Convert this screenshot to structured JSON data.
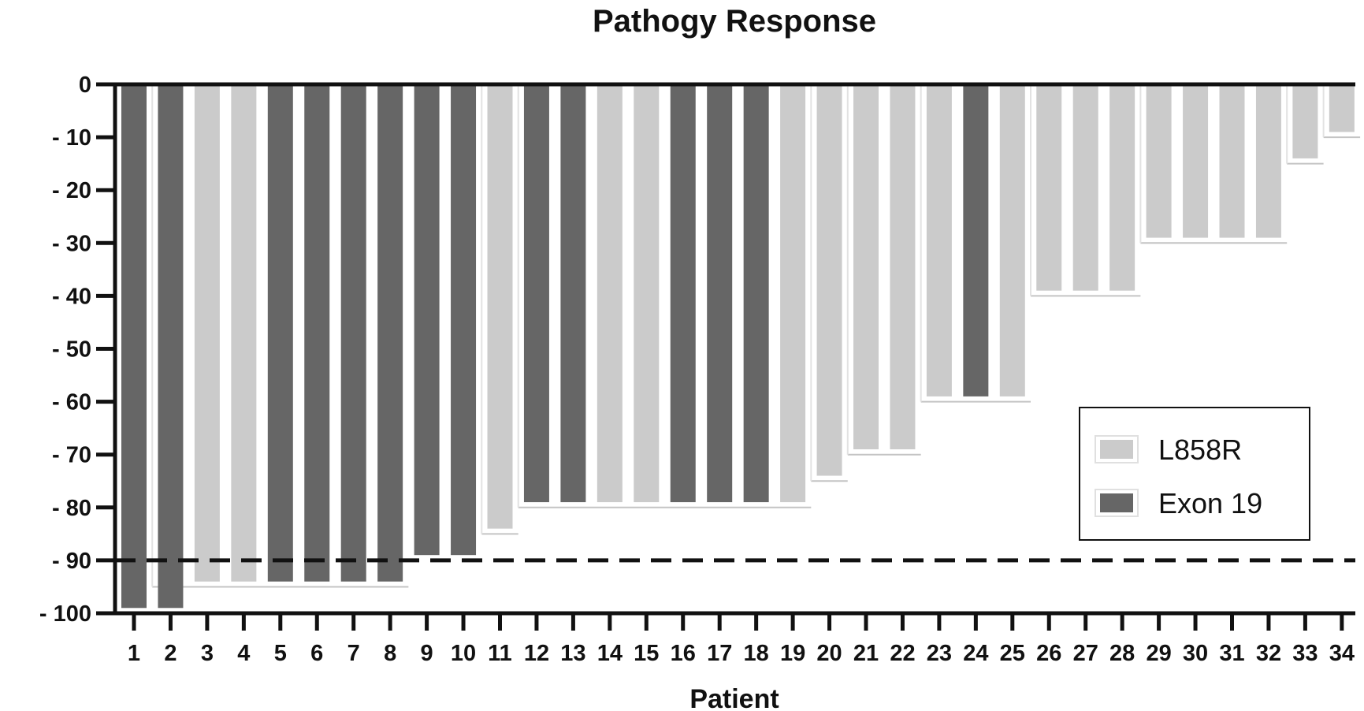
{
  "chart_data": {
    "type": "bar",
    "title": "Pathogy Response",
    "xlabel": "Patient",
    "ylabel": "",
    "ylim": [
      -100,
      0
    ],
    "yticks": [
      0,
      -10,
      -20,
      -30,
      -40,
      -50,
      -60,
      -70,
      -80,
      -90,
      -100
    ],
    "ytick_labels": [
      "0",
      "- 10",
      "- 20",
      "- 30",
      "- 40",
      "- 50",
      "- 60",
      "- 70",
      "- 80",
      "- 90",
      "- 100"
    ],
    "categories": [
      "1",
      "2",
      "3",
      "4",
      "5",
      "6",
      "7",
      "8",
      "9",
      "10",
      "11",
      "12",
      "13",
      "14",
      "15",
      "16",
      "17",
      "18",
      "19",
      "20",
      "21",
      "22",
      "23",
      "24",
      "25",
      "26",
      "27",
      "28",
      "29",
      "30",
      "31",
      "32",
      "33",
      "34"
    ],
    "values": [
      -99,
      -99,
      -94,
      -94,
      -94,
      -94,
      -94,
      -94,
      -89,
      -89,
      -84,
      -79,
      -79,
      -79,
      -79,
      -79,
      -79,
      -79,
      -79,
      -74,
      -69,
      -69,
      -59,
      -59,
      -59,
      -39,
      -39,
      -39,
      -29,
      -29,
      -29,
      -29,
      -14,
      -9
    ],
    "groups": [
      "Exon 19",
      "Exon 19",
      "L858R",
      "L858R",
      "Exon 19",
      "Exon 19",
      "Exon 19",
      "Exon 19",
      "Exon 19",
      "Exon 19",
      "L858R",
      "Exon 19",
      "Exon 19",
      "L858R",
      "L858R",
      "Exon 19",
      "Exon 19",
      "Exon 19",
      "L858R",
      "L858R",
      "L858R",
      "L858R",
      "L858R",
      "Exon 19",
      "L858R",
      "L858R",
      "L858R",
      "L858R",
      "L858R",
      "L858R",
      "L858R",
      "L858R",
      "L858R",
      "L858R"
    ],
    "series": [
      {
        "name": "L858R",
        "color": "#cbcbcb"
      },
      {
        "name": "Exon 19",
        "color": "#666666"
      }
    ],
    "step_outline": [
      {
        "from": 2,
        "to": 8,
        "value": -95
      },
      {
        "from": 11,
        "to": 11,
        "value": -85
      },
      {
        "from": 12,
        "to": 19,
        "value": -80
      },
      {
        "from": 20,
        "to": 20,
        "value": -75
      },
      {
        "from": 21,
        "to": 22,
        "value": -70
      },
      {
        "from": 23,
        "to": 25,
        "value": -60
      },
      {
        "from": 26,
        "to": 28,
        "value": -40
      },
      {
        "from": 29,
        "to": 32,
        "value": -30
      },
      {
        "from": 33,
        "to": 33,
        "value": -15
      },
      {
        "from": 34,
        "to": 34,
        "value": -10
      }
    ],
    "reference_line": {
      "value": -90,
      "style": "dashed"
    },
    "legend_position": "right",
    "grid": false
  }
}
